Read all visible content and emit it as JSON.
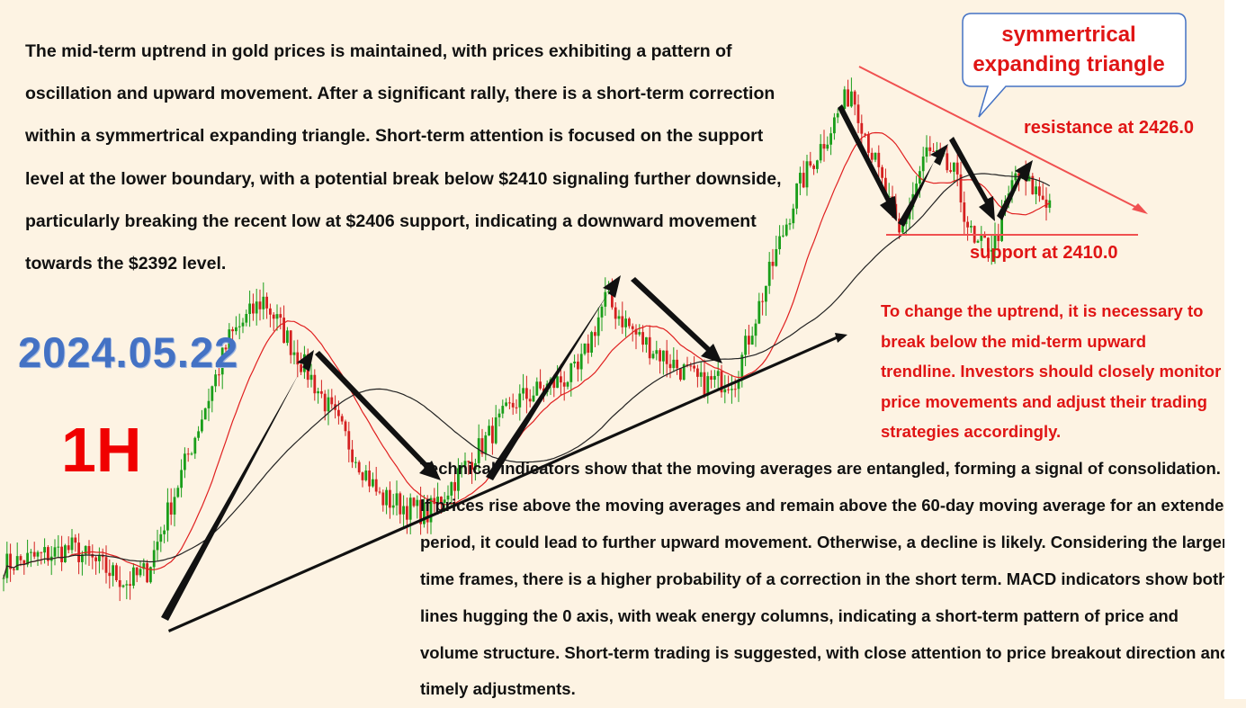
{
  "colors": {
    "background": "#fdf3e3",
    "candle_up": "#1a9e1a",
    "candle_down": "#d42020",
    "ma_fast": "#e02020",
    "ma_slow": "#222222",
    "annotation_red": "#e01515",
    "date_blue": "#4472c4",
    "callout_border": "#4472c4"
  },
  "date_label": "2024.05.22",
  "timeframe_label": "1H",
  "callout": {
    "text": "symmertrical expanding triangle"
  },
  "resistance_label": "resistance at 2426.0",
  "support_label": "support at 2410.0",
  "top_paragraph": "The mid-term uptrend in gold prices is maintained, with prices exhibiting a pattern of oscillation and upward movement. After a significant rally, there is a short-term correction within a symmertrical expanding triangle. Short-term attention is focused on the support level at the lower boundary, with a potential break below $2410 signaling further downside, particularly breaking the recent low at $2406 support, indicating a downward movement towards the $2392 level.",
  "right_paragraph": "To change the uptrend, it is necessary to break below the mid-term upward trendline. Investors should closely monitor price movements and adjust their trading strategies accordingly.",
  "bottom_paragraph": "Technical indicators show that the moving averages are entangled, forming a signal of consolidation. If prices rise above the moving averages and remain above the 60-day moving average for an extended period, it could lead to further upward movement. Otherwise, a decline is likely. Considering the larger time frames, there is a higher probability of a correction in the short term. MACD indicators show both lines hugging the 0 axis, with weak energy columns, indicating a short-term pattern of price and volume structure. Short-term trading is suggested, with close attention to price breakout direction and timely adjustments.",
  "chart_data": {
    "type": "candlestick",
    "timeframe": "1H",
    "instrument": "gold",
    "price_anchors": [
      {
        "t": 0,
        "p": 2352
      },
      {
        "t": 20,
        "p": 2355
      },
      {
        "t": 36,
        "p": 2349
      },
      {
        "t": 42,
        "p": 2351
      },
      {
        "t": 66,
        "p": 2392
      },
      {
        "t": 76,
        "p": 2399
      },
      {
        "t": 90,
        "p": 2385
      },
      {
        "t": 110,
        "p": 2364
      },
      {
        "t": 124,
        "p": 2361
      },
      {
        "t": 150,
        "p": 2381
      },
      {
        "t": 168,
        "p": 2386
      },
      {
        "t": 176,
        "p": 2399
      },
      {
        "t": 186,
        "p": 2392
      },
      {
        "t": 204,
        "p": 2384
      },
      {
        "t": 214,
        "p": 2385
      },
      {
        "t": 232,
        "p": 2418
      },
      {
        "t": 248,
        "p": 2436
      },
      {
        "t": 256,
        "p": 2421
      },
      {
        "t": 262,
        "p": 2410
      },
      {
        "t": 270,
        "p": 2425
      },
      {
        "t": 278,
        "p": 2421
      },
      {
        "t": 284,
        "p": 2408
      },
      {
        "t": 290,
        "p": 2409
      },
      {
        "t": 296,
        "p": 2421
      },
      {
        "t": 306,
        "p": 2416
      }
    ],
    "price_range": [
      2340,
      2440
    ],
    "indicators": [
      {
        "name": "fast moving average",
        "period": 20
      },
      {
        "name": "60-day moving average",
        "period": 60
      }
    ],
    "levels": {
      "resistance": 2426.0,
      "support": 2410.0
    }
  }
}
